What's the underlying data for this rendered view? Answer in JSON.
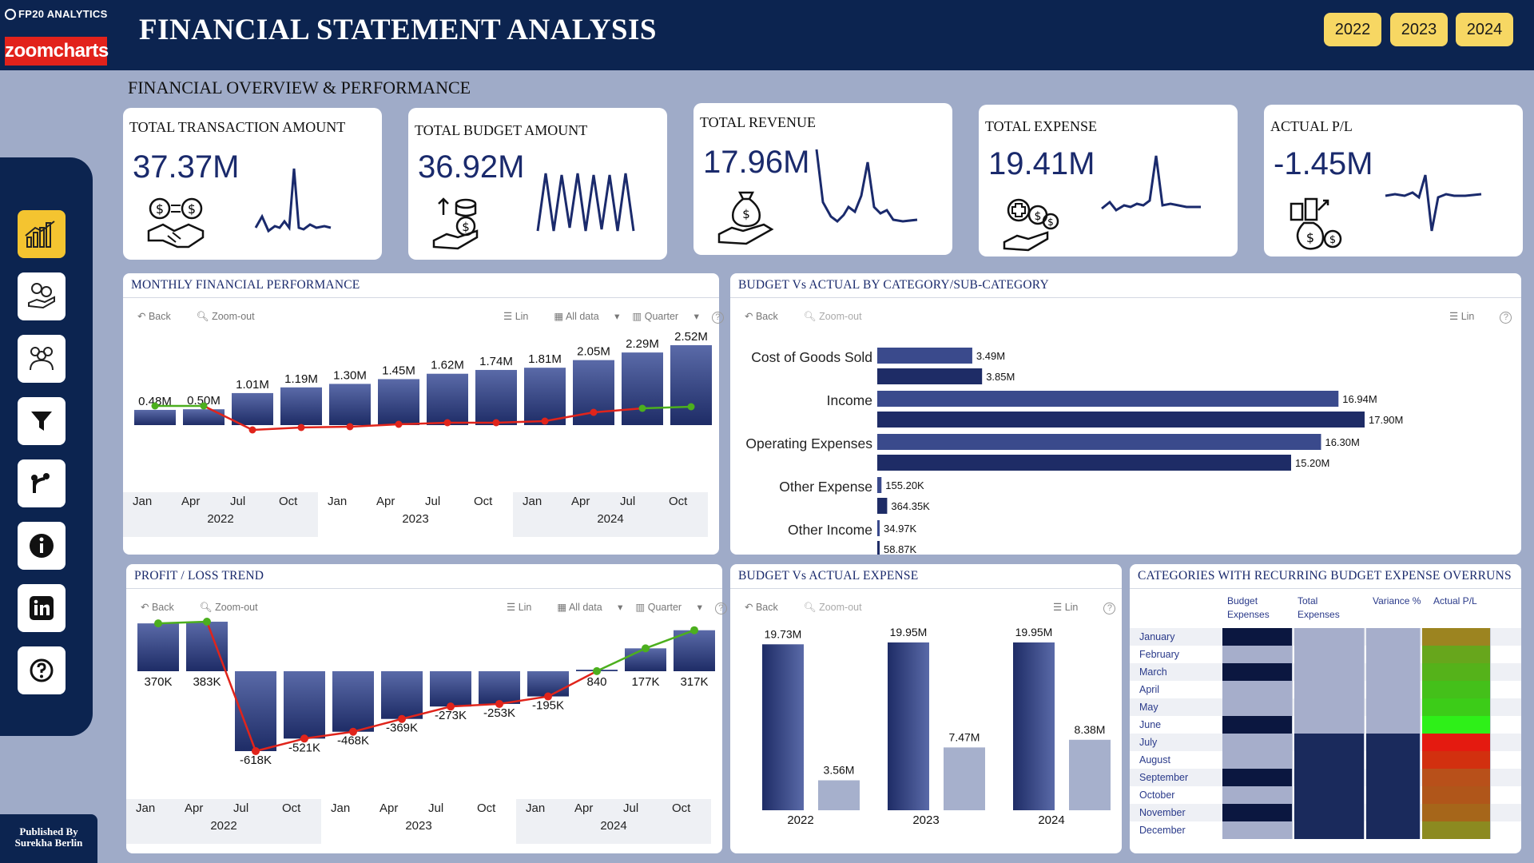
{
  "header": {
    "brand_fp20": "FP20 ANALYTICS",
    "brand_zoom": "zoomcharts",
    "title": "FINANCIAL STATEMENT ANALYSIS",
    "years": [
      "2022",
      "2023",
      "2024"
    ]
  },
  "section_title": "FINANCIAL OVERVIEW & PERFORMANCE",
  "published": "Published By Surekha Berlin",
  "kpis": [
    {
      "label": "TOTAL TRANSACTION AMOUNT",
      "value": "37.37M",
      "icon": "handshake-money-icon"
    },
    {
      "label": "TOTAL BUDGET AMOUNT",
      "value": "36.92M",
      "icon": "hand-coins-icon"
    },
    {
      "label": "TOTAL REVENUE",
      "value": "17.96M",
      "icon": "hand-money-bag-icon"
    },
    {
      "label": "TOTAL EXPENSE",
      "value": "19.41M",
      "icon": "hand-medical-coins-icon"
    },
    {
      "label": "ACTUAL P/L",
      "value": "-1.45M",
      "icon": "coins-chart-icon"
    }
  ],
  "toolbar": {
    "back": "Back",
    "zoom_out": "Zoom-out",
    "lin": "Lin",
    "all_data": "All data",
    "quarter": "Quarter",
    "help": "?"
  },
  "panels": {
    "monthly": "MONTHLY FINANCIAL PERFORMANCE",
    "budget_cat": "BUDGET Vs ACTUAL BY CATEGORY/SUB-CATEGORY",
    "pl_trend": "PROFIT / LOSS TREND",
    "budget_exp": "BUDGET Vs ACTUAL EXPENSE",
    "overruns": "CATEGORIES WITH RECURRING BUDGET EXPENSE OVERRUNS"
  },
  "chart_data": [
    {
      "type": "bar",
      "title": "MONTHLY FINANCIAL PERFORMANCE",
      "categories": [
        "Q1 2022",
        "Q2 2022",
        "Q3 2022",
        "Q4 2022",
        "Q1 2023",
        "Q2 2023",
        "Q3 2023",
        "Q4 2023",
        "Q1 2024",
        "Q2 2024",
        "Q3 2024",
        "Q4 2024"
      ],
      "values": [
        0.48,
        0.5,
        1.01,
        1.19,
        1.3,
        1.45,
        1.62,
        1.74,
        1.81,
        2.05,
        2.29,
        2.52
      ],
      "labels": [
        "0.48M",
        "0.50M",
        "1.01M",
        "1.19M",
        "1.30M",
        "1.45M",
        "1.62M",
        "1.74M",
        "1.81M",
        "2.05M",
        "2.29M",
        "2.52M"
      ],
      "line_values": [
        0.06,
        0.06,
        -0.24,
        -0.21,
        -0.2,
        -0.17,
        -0.15,
        -0.15,
        -0.13,
        -0.02,
        0.03,
        0.05
      ],
      "x_ticks": [
        "Jan",
        "Apr",
        "Jul",
        "Oct",
        "Jan",
        "Apr",
        "Jul",
        "Oct",
        "Jan",
        "Apr",
        "Jul",
        "Oct"
      ],
      "x_years": [
        "2022",
        "2023",
        "2024"
      ]
    },
    {
      "type": "bar",
      "orientation": "horizontal",
      "title": "BUDGET Vs ACTUAL BY CATEGORY/SUB-CATEGORY",
      "categories": [
        "Cost of Goods Sold",
        "Income",
        "Operating Expenses",
        "Other Expense",
        "Other Income"
      ],
      "series": [
        {
          "name": "Budget",
          "values": [
            3.49,
            16.94,
            16.3,
            0.1552,
            0.03497
          ],
          "labels": [
            "3.49M",
            "16.94M",
            "16.30M",
            "155.20K",
            "34.97K"
          ]
        },
        {
          "name": "Actual",
          "values": [
            3.85,
            17.9,
            15.2,
            0.36435,
            0.05887
          ],
          "labels": [
            "3.85M",
            "17.90M",
            "15.20M",
            "364.35K",
            "58.87K"
          ]
        }
      ]
    },
    {
      "type": "bar",
      "title": "PROFIT / LOSS TREND",
      "categories": [
        "Q1 2022",
        "Q2 2022",
        "Q3 2022",
        "Q4 2022",
        "Q1 2023",
        "Q2 2023",
        "Q3 2023",
        "Q4 2023",
        "Q1 2024",
        "Q2 2024",
        "Q3 2024",
        "Q4 2024"
      ],
      "values": [
        370,
        383,
        -618,
        -521,
        -468,
        -369,
        -273,
        -253,
        -195,
        0.84,
        177,
        317
      ],
      "labels": [
        "370K",
        "383K",
        "-618K",
        "-521K",
        "-468K",
        "-369K",
        "-273K",
        "-253K",
        "-195K",
        "840",
        "177K",
        "317K"
      ],
      "line_values": [
        370,
        383,
        -618,
        -521,
        -468,
        -369,
        -273,
        -253,
        -195,
        0.84,
        177,
        317
      ],
      "x_ticks": [
        "Jan",
        "Apr",
        "Jul",
        "Oct",
        "Jan",
        "Apr",
        "Jul",
        "Oct",
        "Jan",
        "Apr",
        "Jul",
        "Oct"
      ],
      "x_years": [
        "2022",
        "2023",
        "2024"
      ]
    },
    {
      "type": "bar",
      "title": "BUDGET Vs ACTUAL EXPENSE",
      "categories": [
        "2022",
        "2023",
        "2024"
      ],
      "series": [
        {
          "name": "Budget",
          "values": [
            19.73,
            19.95,
            19.95
          ],
          "labels": [
            "19.73M",
            "19.95M",
            "19.95M"
          ]
        },
        {
          "name": "Actual",
          "values": [
            3.56,
            7.47,
            8.38
          ],
          "labels": [
            "3.56M",
            "7.47M",
            "8.38M"
          ]
        }
      ]
    },
    {
      "type": "heatmap",
      "title": "CATEGORIES WITH RECURRING BUDGET EXPENSE OVERRUNS",
      "columns": [
        "Budget Expenses",
        "Total Expenses",
        "Variance %",
        "Actual P/L"
      ],
      "rows": [
        "January",
        "February",
        "March",
        "April",
        "May",
        "June",
        "July",
        "August",
        "September",
        "October",
        "November",
        "December"
      ],
      "cell_colors": [
        [
          "#0b1740",
          "#a6aecb",
          "#a6aecb",
          "#9c8420"
        ],
        [
          "#a6aecb",
          "#a6aecb",
          "#a6aecb",
          "#67a61c"
        ],
        [
          "#0b1740",
          "#a6aecb",
          "#a6aecb",
          "#55b21a"
        ],
        [
          "#a6aecb",
          "#a6aecb",
          "#a6aecb",
          "#44c01a"
        ],
        [
          "#a6aecb",
          "#a6aecb",
          "#a6aecb",
          "#3ccc18"
        ],
        [
          "#0b1740",
          "#a6aecb",
          "#a6aecb",
          "#2ef018"
        ],
        [
          "#a6aecb",
          "#1a2a5c",
          "#1a2a5c",
          "#e41a10"
        ],
        [
          "#a6aecb",
          "#1a2a5c",
          "#1a2a5c",
          "#d2300f"
        ],
        [
          "#0b1740",
          "#1a2a5c",
          "#1a2a5c",
          "#b8501a"
        ],
        [
          "#a6aecb",
          "#1a2a5c",
          "#1a2a5c",
          "#b0561a"
        ],
        [
          "#0b1740",
          "#1a2a5c",
          "#1a2a5c",
          "#a6661a"
        ],
        [
          "#a6aecb",
          "#1a2a5c",
          "#1a2a5c",
          "#8c8a20"
        ]
      ]
    }
  ]
}
